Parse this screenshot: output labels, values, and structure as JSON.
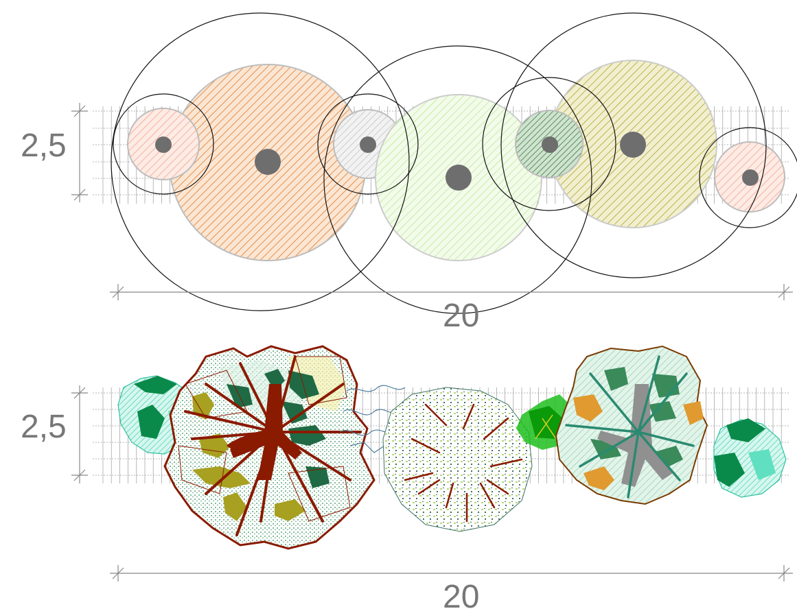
{
  "colors": {
    "dimension": "#888888",
    "canopy_orange": "#e07a2a",
    "canopy_salmon": "#f0a08a",
    "canopy_lightgreen": "#b8e890",
    "canopy_olive": "#a8a020",
    "canopy_darkgreen": "#3a7a40",
    "canopy_grey": "#b0b0b0",
    "trunk": "#6e6e6e",
    "trunk_red": "#8a1a00",
    "foliage_teal": "#2aa070",
    "foliage_aqua": "#60e0c0"
  },
  "top_view": {
    "height_label": "2,5",
    "width_label": "20"
  },
  "bottom_view": {
    "height_label": "2,5",
    "width_label": "20"
  }
}
